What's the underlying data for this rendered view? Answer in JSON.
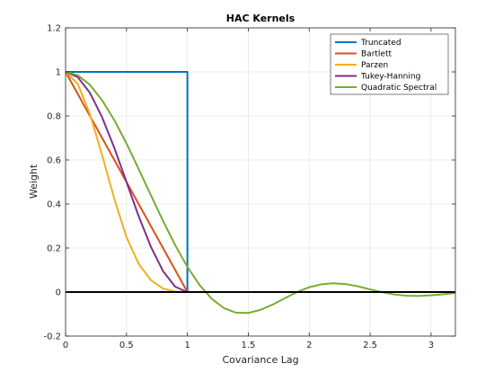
{
  "chart_data": {
    "type": "line",
    "title": "HAC Kernels",
    "xlabel": "Covariance Lag",
    "ylabel": "Weight",
    "xlim": [
      0,
      3.2
    ],
    "ylim": [
      -0.2,
      1.2
    ],
    "xticks": [
      0,
      0.5,
      1,
      1.5,
      2,
      2.5,
      3
    ],
    "xtick_labels": [
      "0",
      "0.5",
      "1",
      "1.5",
      "2",
      "2.5",
      "3"
    ],
    "yticks": [
      -0.2,
      0,
      0.2,
      0.4,
      0.6,
      0.8,
      1,
      1.2
    ],
    "ytick_labels": [
      "-0.2",
      "0",
      "0.2",
      "0.4",
      "0.6",
      "0.8",
      "1",
      "1.2"
    ],
    "grid": true,
    "legend_position": "top-right",
    "zero_line": {
      "y": 0,
      "color": "#000000"
    },
    "series": [
      {
        "name": "Truncated",
        "color": "#0072BD",
        "x": [
          0,
          1,
          1,
          3.2
        ],
        "y": [
          1,
          1,
          0,
          0
        ]
      },
      {
        "name": "Bartlett",
        "color": "#D95319",
        "x": [
          0,
          0.1,
          0.2,
          0.3,
          0.4,
          0.5,
          0.6,
          0.7,
          0.8,
          0.9,
          1,
          3.2
        ],
        "y": [
          1,
          0.9,
          0.8,
          0.7,
          0.6,
          0.5,
          0.4,
          0.3,
          0.2,
          0.1,
          0,
          0
        ]
      },
      {
        "name": "Parzen",
        "color": "#EDB120",
        "x": [
          0,
          0.1,
          0.2,
          0.3,
          0.4,
          0.5,
          0.6,
          0.7,
          0.8,
          0.9,
          1,
          3.2
        ],
        "y": [
          1,
          0.946,
          0.808,
          0.622,
          0.424,
          0.25,
          0.128,
          0.054,
          0.016,
          0.002,
          0,
          0
        ]
      },
      {
        "name": "Tukey-Hanning",
        "color": "#7E2F8E",
        "x": [
          0,
          0.1,
          0.2,
          0.3,
          0.4,
          0.5,
          0.6,
          0.7,
          0.8,
          0.9,
          1,
          3.2
        ],
        "y": [
          1,
          0.976,
          0.905,
          0.794,
          0.655,
          0.5,
          0.345,
          0.206,
          0.095,
          0.024,
          0,
          0
        ]
      },
      {
        "name": "Quadratic Spectral",
        "color": "#77AC30",
        "x": [
          0,
          0.1,
          0.2,
          0.3,
          0.4,
          0.5,
          0.6,
          0.7,
          0.8,
          0.9,
          1,
          1.1,
          1.2,
          1.3,
          1.4,
          1.5,
          1.6,
          1.7,
          1.8,
          1.9,
          2,
          2.1,
          2.2,
          2.3,
          2.4,
          2.5,
          2.6,
          2.7,
          2.8,
          2.9,
          3,
          3.1,
          3.2
        ],
        "y": [
          1,
          0.985,
          0.941,
          0.871,
          0.781,
          0.675,
          0.559,
          0.44,
          0.323,
          0.213,
          0.114,
          0.032,
          -0.031,
          -0.073,
          -0.094,
          -0.095,
          -0.081,
          -0.057,
          -0.028,
          0,
          0.022,
          0.035,
          0.04,
          0.036,
          0.026,
          0.012,
          -0.001,
          -0.011,
          -0.017,
          -0.018,
          -0.015,
          -0.01,
          -0.004
        ]
      }
    ]
  }
}
